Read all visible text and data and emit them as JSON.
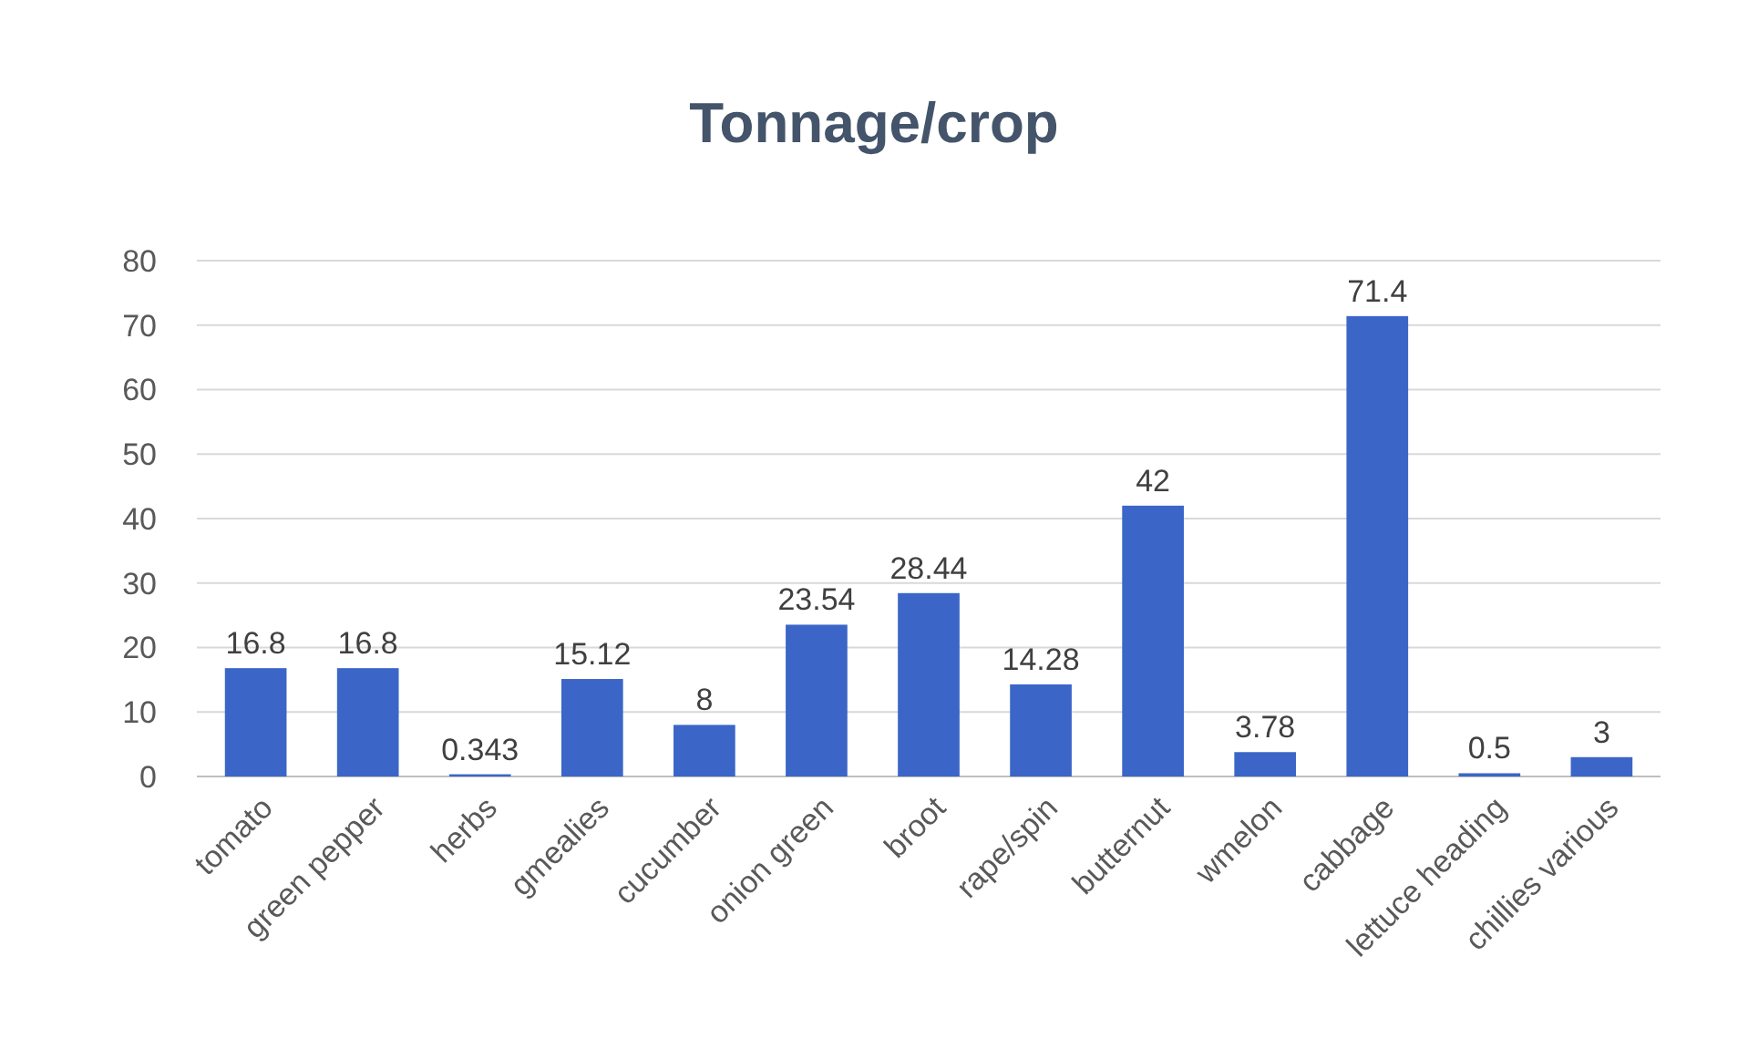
{
  "chart_data": {
    "type": "bar",
    "title": "Tonnage/crop",
    "categories": [
      "tomato",
      "green pepper",
      "herbs",
      "gmealies",
      "cucumber",
      "onion green",
      "broot",
      "rape/spin",
      "butternut",
      "wmelon",
      "cabbage",
      "lettuce heading",
      "chillies various"
    ],
    "values": [
      16.8,
      16.8,
      0.343,
      15.12,
      8,
      23.54,
      28.44,
      14.28,
      42,
      3.78,
      71.4,
      0.5,
      3
    ],
    "color": "#3b66c8",
    "ylim": [
      0,
      80
    ],
    "yticks": [
      0,
      10,
      20,
      30,
      40,
      50,
      60,
      70,
      80
    ],
    "grid": "y",
    "data_labels": true
  }
}
